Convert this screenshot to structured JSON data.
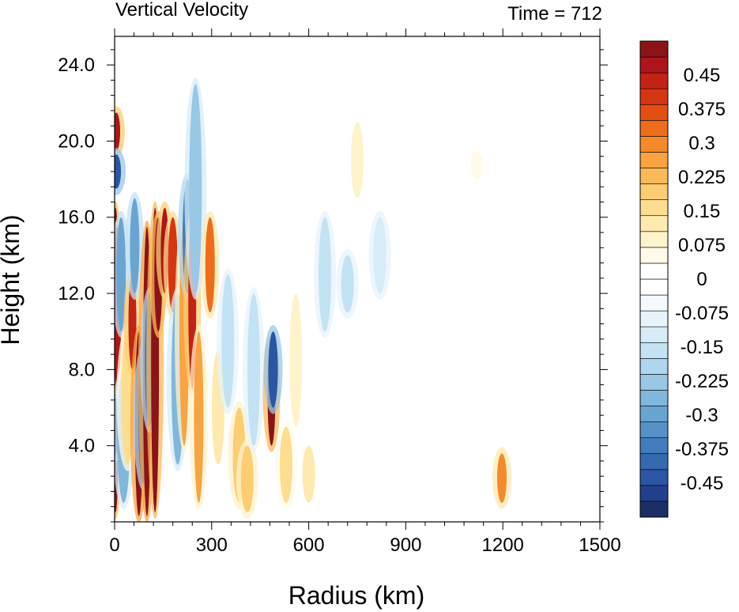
{
  "chart_data": {
    "type": "heatmap",
    "title": "Vertical Velocity",
    "subtitle": "Time = 712",
    "xlabel": "Radius (km)",
    "ylabel": "Height (km)",
    "xlim": [
      0,
      1500
    ],
    "ylim": [
      0,
      25.5
    ],
    "x_ticks": [
      {
        "value": 0,
        "label": "0"
      },
      {
        "value": 300,
        "label": "300"
      },
      {
        "value": 600,
        "label": "600"
      },
      {
        "value": 900,
        "label": "900"
      },
      {
        "value": 1200,
        "label": "1200"
      },
      {
        "value": 1500,
        "label": "1500"
      }
    ],
    "y_ticks": [
      {
        "value": 4,
        "label": "4.0"
      },
      {
        "value": 8,
        "label": "8.0"
      },
      {
        "value": 12,
        "label": "12.0"
      },
      {
        "value": 16,
        "label": "16.0"
      },
      {
        "value": 20,
        "label": "20.0"
      },
      {
        "value": 24,
        "label": "24.0"
      }
    ],
    "colorbar": {
      "min": -0.525,
      "max": 0.525,
      "step": 0.0375,
      "colors": [
        "#1b2f66",
        "#213f8c",
        "#2a56a3",
        "#3569b0",
        "#427cbc",
        "#5591c7",
        "#6aa5d2",
        "#80b7dc",
        "#98c8e6",
        "#aed6ee",
        "#c3e2f3",
        "#d6ecf8",
        "#e6f3fb",
        "#f3f9fd",
        "#ffffff",
        "#ffffff",
        "#fffbe8",
        "#fff3cc",
        "#fee9ae",
        "#fddd90",
        "#fccd73",
        "#fbba59",
        "#f9a342",
        "#f58a2c",
        "#ee6d1c",
        "#e34f13",
        "#d53612",
        "#c32216",
        "#ac1519",
        "#8b1418"
      ],
      "labels": [
        {
          "value": 0.45,
          "label": "0.45"
        },
        {
          "value": 0.375,
          "label": "0.375"
        },
        {
          "value": 0.3,
          "label": "0.3"
        },
        {
          "value": 0.225,
          "label": "0.225"
        },
        {
          "value": 0.15,
          "label": "0.15"
        },
        {
          "value": 0.075,
          "label": "0.075"
        },
        {
          "value": 0,
          "label": "0"
        },
        {
          "value": -0.075,
          "label": "-0.075"
        },
        {
          "value": -0.15,
          "label": "-0.15"
        },
        {
          "value": -0.225,
          "label": "-0.225"
        },
        {
          "value": -0.3,
          "label": "-0.3"
        },
        {
          "value": -0.375,
          "label": "-0.375"
        },
        {
          "value": -0.45,
          "label": "-0.45"
        }
      ]
    },
    "features": [
      {
        "r": 3,
        "z0": 0.5,
        "z1": 16.5,
        "w": 0.6
      },
      {
        "r": 8,
        "z0": 7,
        "z1": 15.5,
        "w": 0.55
      },
      {
        "r": 5,
        "z0": 19.5,
        "z1": 21.5,
        "w": 0.55
      },
      {
        "r": 5,
        "z0": 17.5,
        "z1": 19.3,
        "w": -0.45
      },
      {
        "r": 2,
        "z0": 3.5,
        "z1": 6.5,
        "w": -0.55
      },
      {
        "r": 20,
        "z0": 10,
        "z1": 16,
        "w": -0.3
      },
      {
        "r": 28,
        "z0": 1,
        "z1": 8,
        "w": -0.25
      },
      {
        "r": 40,
        "z0": 3,
        "z1": 10,
        "w": 0.22
      },
      {
        "r": 55,
        "z0": 8,
        "z1": 13,
        "w": 0.5
      },
      {
        "r": 62,
        "z0": 12,
        "z1": 17,
        "w": -0.3
      },
      {
        "r": 75,
        "z0": 0.3,
        "z1": 10,
        "w": 0.7
      },
      {
        "r": 88,
        "z0": 2,
        "z1": 9,
        "w": -0.35
      },
      {
        "r": 100,
        "z0": 0.3,
        "z1": 15.5,
        "w": 0.7
      },
      {
        "r": 108,
        "z0": 5,
        "z1": 12,
        "w": -0.35
      },
      {
        "r": 125,
        "z0": 0.5,
        "z1": 16.5,
        "w": 0.65
      },
      {
        "r": 135,
        "z0": 10,
        "z1": 16,
        "w": 0.6
      },
      {
        "r": 155,
        "z0": 12,
        "z1": 16.5,
        "w": 0.55
      },
      {
        "r": 180,
        "z0": 11,
        "z1": 16,
        "w": 0.45
      },
      {
        "r": 195,
        "z0": 3,
        "z1": 12,
        "w": -0.25
      },
      {
        "r": 215,
        "z0": 4,
        "z1": 16,
        "w": 0.3
      },
      {
        "r": 225,
        "z0": 12,
        "z1": 18,
        "w": -0.35
      },
      {
        "r": 240,
        "z0": 7,
        "z1": 16,
        "w": 0.5
      },
      {
        "r": 250,
        "z0": 12,
        "z1": 23,
        "w": -0.2
      },
      {
        "r": 260,
        "z0": 1,
        "z1": 10,
        "w": 0.3
      },
      {
        "r": 295,
        "z0": 11,
        "z1": 16,
        "w": 0.4
      },
      {
        "r": 320,
        "z0": 3,
        "z1": 9,
        "w": 0.15
      },
      {
        "r": 350,
        "z0": 6,
        "z1": 13,
        "w": -0.15
      },
      {
        "r": 385,
        "z0": 1,
        "z1": 6,
        "w": 0.25
      },
      {
        "r": 410,
        "z0": 0.5,
        "z1": 4,
        "w": 0.25
      },
      {
        "r": 430,
        "z0": 4,
        "z1": 12,
        "w": -0.15
      },
      {
        "r": 485,
        "z0": 4,
        "z1": 9.5,
        "w": 0.6
      },
      {
        "r": 490,
        "z0": 6,
        "z1": 10,
        "w": -0.45
      },
      {
        "r": 530,
        "z0": 1,
        "z1": 5,
        "w": 0.2
      },
      {
        "r": 560,
        "z0": 5,
        "z1": 12,
        "w": 0.12
      },
      {
        "r": 600,
        "z0": 1,
        "z1": 4,
        "w": 0.15
      },
      {
        "r": 650,
        "z0": 10,
        "z1": 16,
        "w": -0.12
      },
      {
        "r": 720,
        "z0": 11,
        "z1": 14,
        "w": -0.15
      },
      {
        "r": 750,
        "z0": 17,
        "z1": 21,
        "w": 0.12
      },
      {
        "r": 820,
        "z0": 12,
        "z1": 16,
        "w": -0.1
      },
      {
        "r": 1120,
        "z0": 18,
        "z1": 19.5,
        "w": 0.1
      },
      {
        "r": 1197,
        "z0": 1,
        "z1": 3.6,
        "w": 0.35
      }
    ]
  }
}
